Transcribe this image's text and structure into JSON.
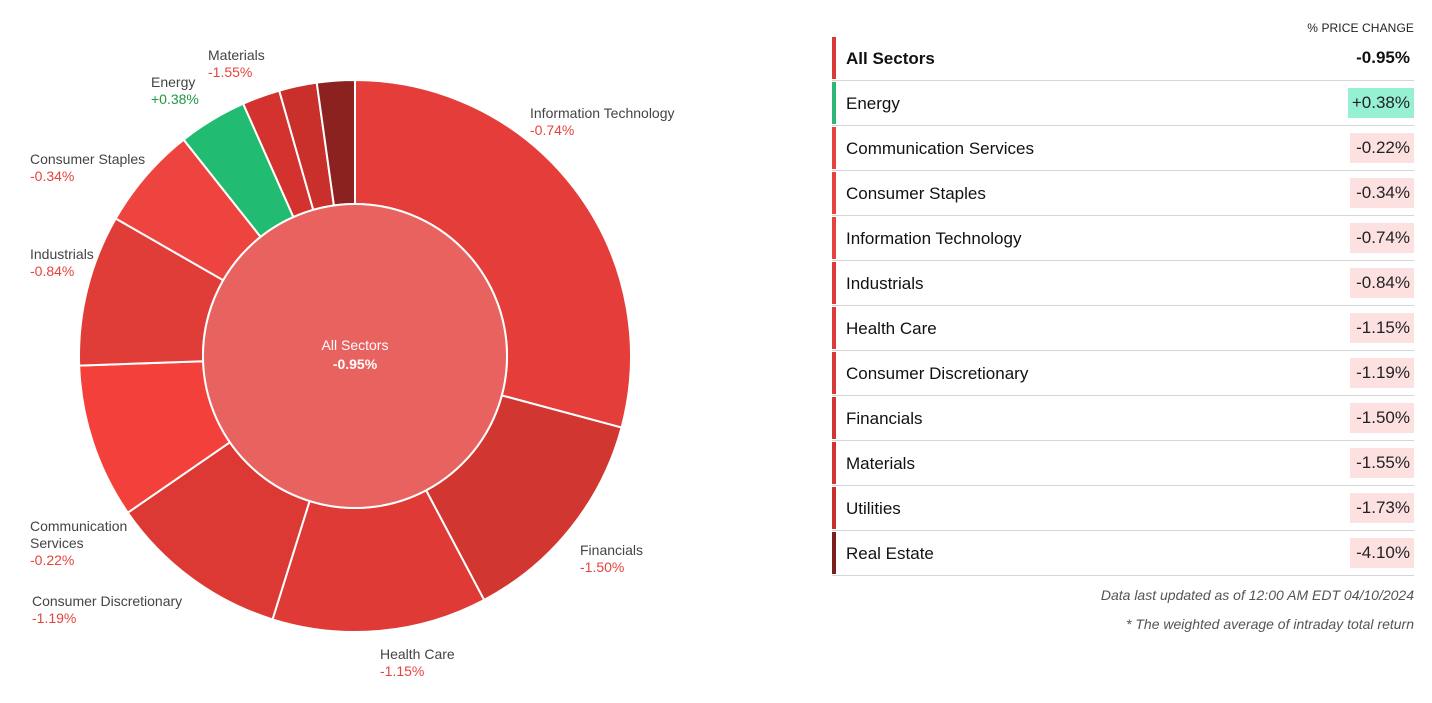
{
  "panel": {
    "header": "% PRICE CHANGE",
    "footnote_updated": "Data last updated as of 12:00 AM EDT 04/10/2024",
    "footnote_weighted": "* The weighted average of intraday total return"
  },
  "table": [
    {
      "name": "All Sectors",
      "change": "-0.95%",
      "bar_color": "#d93a36",
      "badge_color": "transparent"
    },
    {
      "name": "Energy",
      "change": "+0.38%",
      "bar_color": "#2fb574",
      "badge_color": "#96f0d4"
    },
    {
      "name": "Communication Services",
      "change": "-0.22%",
      "bar_color": "#e5443d",
      "badge_color": "#fde1e1"
    },
    {
      "name": "Consumer Staples",
      "change": "-0.34%",
      "bar_color": "#e5443d",
      "badge_color": "#fde1e1"
    },
    {
      "name": "Information Technology",
      "change": "-0.74%",
      "bar_color": "#e5443d",
      "badge_color": "#fde1e1"
    },
    {
      "name": "Industrials",
      "change": "-0.84%",
      "bar_color": "#dc3b37",
      "badge_color": "#fde1e1"
    },
    {
      "name": "Health Care",
      "change": "-1.15%",
      "bar_color": "#dc3b37",
      "badge_color": "#fde1e1"
    },
    {
      "name": "Consumer Discretionary",
      "change": "-1.19%",
      "bar_color": "#d73934",
      "badge_color": "#fde1e1"
    },
    {
      "name": "Financials",
      "change": "-1.50%",
      "bar_color": "#d2342f",
      "badge_color": "#fde1e1"
    },
    {
      "name": "Materials",
      "change": "-1.55%",
      "bar_color": "#d2342f",
      "badge_color": "#fde1e1"
    },
    {
      "name": "Utilities",
      "change": "-1.73%",
      "bar_color": "#c8302c",
      "badge_color": "#fde1e1"
    },
    {
      "name": "Real Estate",
      "change": "-4.10%",
      "bar_color": "#7a1f1d",
      "badge_color": "#fde1e1"
    }
  ],
  "chart_data": {
    "type": "pie",
    "center": {
      "label": "All Sectors",
      "value": "-0.95%",
      "change": -0.95,
      "color": "#e8635f"
    },
    "slices": [
      {
        "name": "Information Technology",
        "label": "-0.74%",
        "change": -0.74,
        "weight": 29.0,
        "color": "#e53e3a",
        "label_lines": [
          "Information Technology"
        ],
        "label_color": "#e5443d"
      },
      {
        "name": "Financials",
        "label": "-1.50%",
        "change": -1.5,
        "weight": 13.0,
        "color": "#d23631",
        "label_lines": [
          "Financials"
        ],
        "label_color": "#e5443d"
      },
      {
        "name": "Health Care",
        "label": "-1.15%",
        "change": -1.15,
        "weight": 12.5,
        "color": "#df3a36",
        "label_lines": [
          "Health Care"
        ],
        "label_color": "#e5443d"
      },
      {
        "name": "Consumer Discretionary",
        "label": "-1.19%",
        "change": -1.19,
        "weight": 10.5,
        "color": "#dc3834",
        "label_lines": [
          "Consumer Discretionary"
        ],
        "label_color": "#e5443d"
      },
      {
        "name": "Communication Services",
        "label": "-0.22%",
        "change": -0.22,
        "weight": 9.0,
        "color": "#f4403b",
        "label_lines": [
          "Communication",
          "Services"
        ],
        "label_color": "#e5443d"
      },
      {
        "name": "Industrials",
        "label": "-0.84%",
        "change": -0.84,
        "weight": 8.8,
        "color": "#e13d38",
        "label_lines": [
          "Industrials"
        ],
        "label_color": "#e5443d"
      },
      {
        "name": "Consumer Staples",
        "label": "-0.34%",
        "change": -0.34,
        "weight": 6.0,
        "color": "#ee4440",
        "label_lines": [
          "Consumer Staples"
        ],
        "label_color": "#e5443d"
      },
      {
        "name": "Energy",
        "label": "+0.38%",
        "change": 0.38,
        "weight": 4.0,
        "color": "#22bb72",
        "label_lines": [
          "Energy"
        ],
        "label_color": "#1f9a3e"
      },
      {
        "name": "Materials",
        "label": "-1.55%",
        "change": -1.55,
        "weight": 2.2,
        "color": "#d3322e",
        "label_lines": [
          "Materials"
        ],
        "label_color": "#e5443d"
      },
      {
        "name": "Utilities",
        "label": "-1.73%",
        "change": -1.73,
        "weight": 2.2,
        "color": "#c9302c",
        "label_lines": [],
        "label_color": "#e5443d"
      },
      {
        "name": "Real Estate",
        "label": "-4.10%",
        "change": -4.1,
        "weight": 2.2,
        "color": "#8b2220",
        "label_lines": [],
        "label_color": "#e5443d"
      }
    ]
  }
}
